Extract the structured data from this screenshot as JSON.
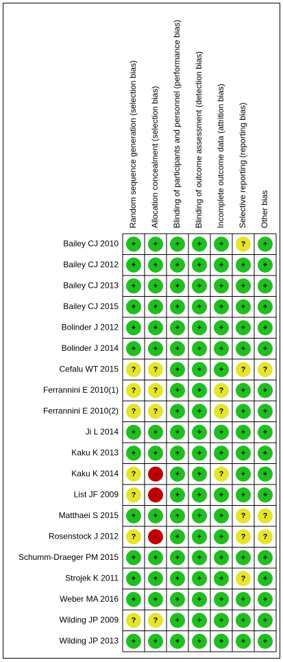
{
  "columns": [
    "Random sequence generation (selection bias)",
    "Allocation concealment (selection bias)",
    "Blinding of participants and personnel (performance bias)",
    "Blinding of outcome assessment (detection bias)",
    "Incomplete outcome data (attrition bias)",
    "Selective reporting (reporting bias)",
    "Other bias"
  ],
  "rows": [
    {
      "label": "Bailey CJ 2010",
      "cells": [
        "+",
        "+",
        "+",
        "+",
        "+",
        "?",
        "+"
      ]
    },
    {
      "label": "Bailey CJ 2012",
      "cells": [
        "+",
        "+",
        "+",
        "+",
        "+",
        "+",
        "+"
      ]
    },
    {
      "label": "Bailey CJ 2013",
      "cells": [
        "+",
        "+",
        "+",
        "+",
        "+",
        "+",
        "+"
      ]
    },
    {
      "label": "Bailey CJ 2015",
      "cells": [
        "+",
        "+",
        "+",
        "+",
        "+",
        "+",
        "+"
      ]
    },
    {
      "label": "Bolinder J 2012",
      "cells": [
        "+",
        "+",
        "+",
        "+",
        "+",
        "+",
        "+"
      ]
    },
    {
      "label": "Bolinder J 2014",
      "cells": [
        "+",
        "+",
        "+",
        "+",
        "+",
        "+",
        "+"
      ]
    },
    {
      "label": "Cefalu WT 2015",
      "cells": [
        "?",
        "?",
        "+",
        "+",
        "+",
        "?",
        "?"
      ]
    },
    {
      "label": "Ferrannini E 2010(1)",
      "cells": [
        "?",
        "?",
        "+",
        "+",
        "?",
        "+",
        "+"
      ]
    },
    {
      "label": "Ferrannini E 2010(2)",
      "cells": [
        "?",
        "?",
        "+",
        "+",
        "?",
        "+",
        "+"
      ]
    },
    {
      "label": "Ji L 2014",
      "cells": [
        "+",
        "+",
        "+",
        "+",
        "+",
        "+",
        "+"
      ]
    },
    {
      "label": "Kaku K 2013",
      "cells": [
        "+",
        "+",
        "+",
        "+",
        "+",
        "+",
        "+"
      ]
    },
    {
      "label": "Kaku K 2014",
      "cells": [
        "?",
        "-",
        "+",
        "+",
        "?",
        "+",
        "+"
      ]
    },
    {
      "label": "List JF 2009",
      "cells": [
        "?",
        "-",
        "+",
        "+",
        "+",
        "+",
        "+"
      ]
    },
    {
      "label": "Matthaei S 2015",
      "cells": [
        "+",
        "+",
        "+",
        "+",
        "+",
        "?",
        "?"
      ]
    },
    {
      "label": "Rosenstock J 2012",
      "cells": [
        "?",
        "-",
        "+",
        "+",
        "+",
        "?",
        "?"
      ]
    },
    {
      "label": "Schumm-Draeger PM 2015",
      "cells": [
        "+",
        "+",
        "+",
        "+",
        "+",
        "+",
        "+"
      ]
    },
    {
      "label": "Strojek K 2011",
      "cells": [
        "+",
        "+",
        "+",
        "+",
        "+",
        "?",
        "+"
      ]
    },
    {
      "label": "Weber MA 2016",
      "cells": [
        "+",
        "+",
        "+",
        "+",
        "+",
        "+",
        "+"
      ]
    },
    {
      "label": "Wilding JP 2009",
      "cells": [
        "?",
        "?",
        "+",
        "+",
        "+",
        "+",
        "+"
      ]
    },
    {
      "label": "Wilding JP 2013",
      "cells": [
        "+",
        "+",
        "+",
        "+",
        "+",
        "+",
        "+"
      ]
    }
  ]
}
